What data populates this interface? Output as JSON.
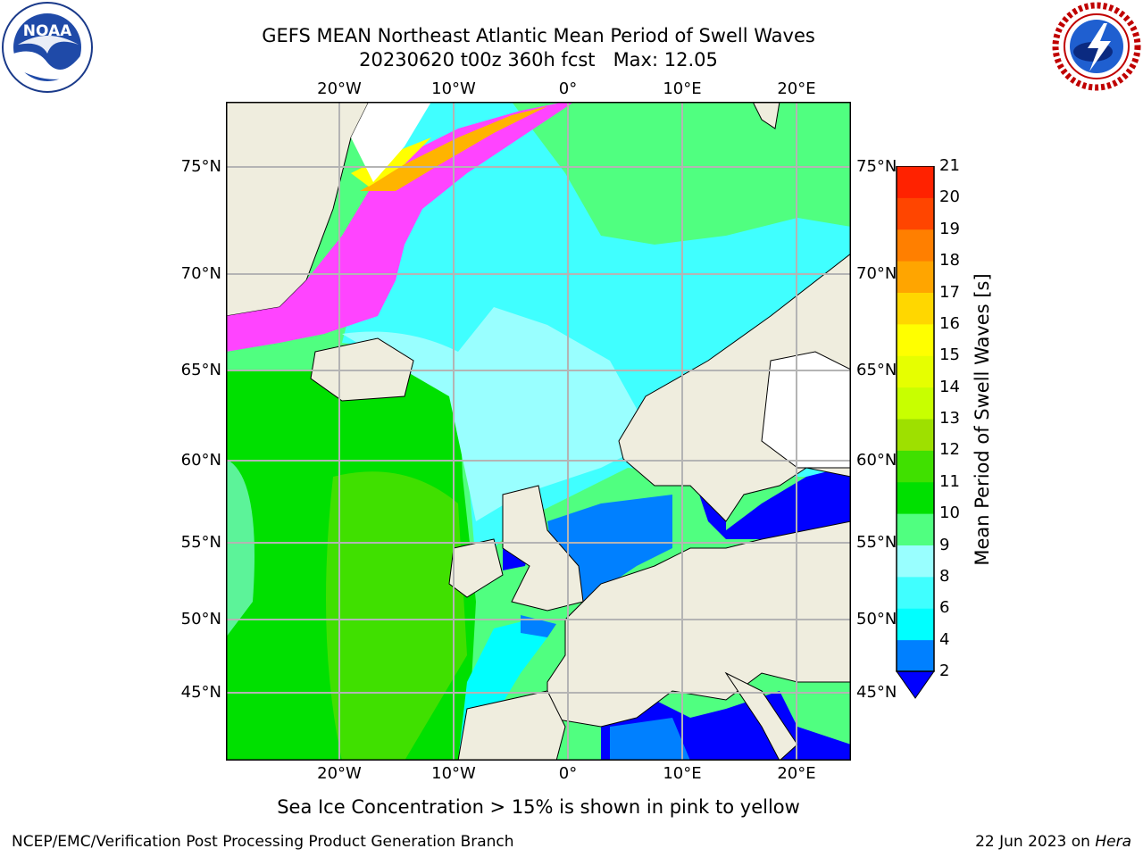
{
  "header": {
    "title_line_1": "GEFS MEAN Northeast Atlantic Mean Period of Swell Waves",
    "title_line_2": "20230620 t00z 360h fcst   Max: 12.05"
  },
  "logos": {
    "left": {
      "icon": "noaa-logo",
      "text": "NOAA"
    },
    "right": {
      "icon": "nws-logo",
      "text": "NATIONAL WEATHER SERVICE"
    }
  },
  "map": {
    "lon_labels": [
      "20°W",
      "10°W",
      "0°",
      "10°E",
      "20°E"
    ],
    "lat_labels": [
      "75°N",
      "70°N",
      "65°N",
      "60°N",
      "55°N",
      "50°N",
      "45°N"
    ],
    "colors": {
      "land": "#efedde",
      "ice_white": "#ffffff",
      "grid": "#b4b4b4",
      "coast": "#000000"
    }
  },
  "colorbar": {
    "title": "Mean Period of Swell Waves [s]",
    "levels": [
      "2",
      "4",
      "6",
      "8",
      "9",
      "10",
      "11",
      "12",
      "13",
      "14",
      "15",
      "16",
      "17",
      "18",
      "19",
      "20",
      "21"
    ],
    "colors": [
      "#0000ff",
      "#0080ff",
      "#00ffff",
      "#40ffff",
      "#99ffff",
      "#50ff80",
      "#00e000",
      "#40e000",
      "#9ee000",
      "#c8ff00",
      "#e6ff00",
      "#ffff00",
      "#ffd700",
      "#ffa500",
      "#ff7f00",
      "#ff4500",
      "#ff2200",
      "#ff0000"
    ],
    "extend": "min"
  },
  "note": "Sea Ice Concentration > 15% is shown in pink to yellow",
  "footer": {
    "left": "NCEP/EMC/Verification Post Processing Product Generation Branch",
    "right_date": "22 Jun 2023 on ",
    "right_machine": "Hera"
  }
}
